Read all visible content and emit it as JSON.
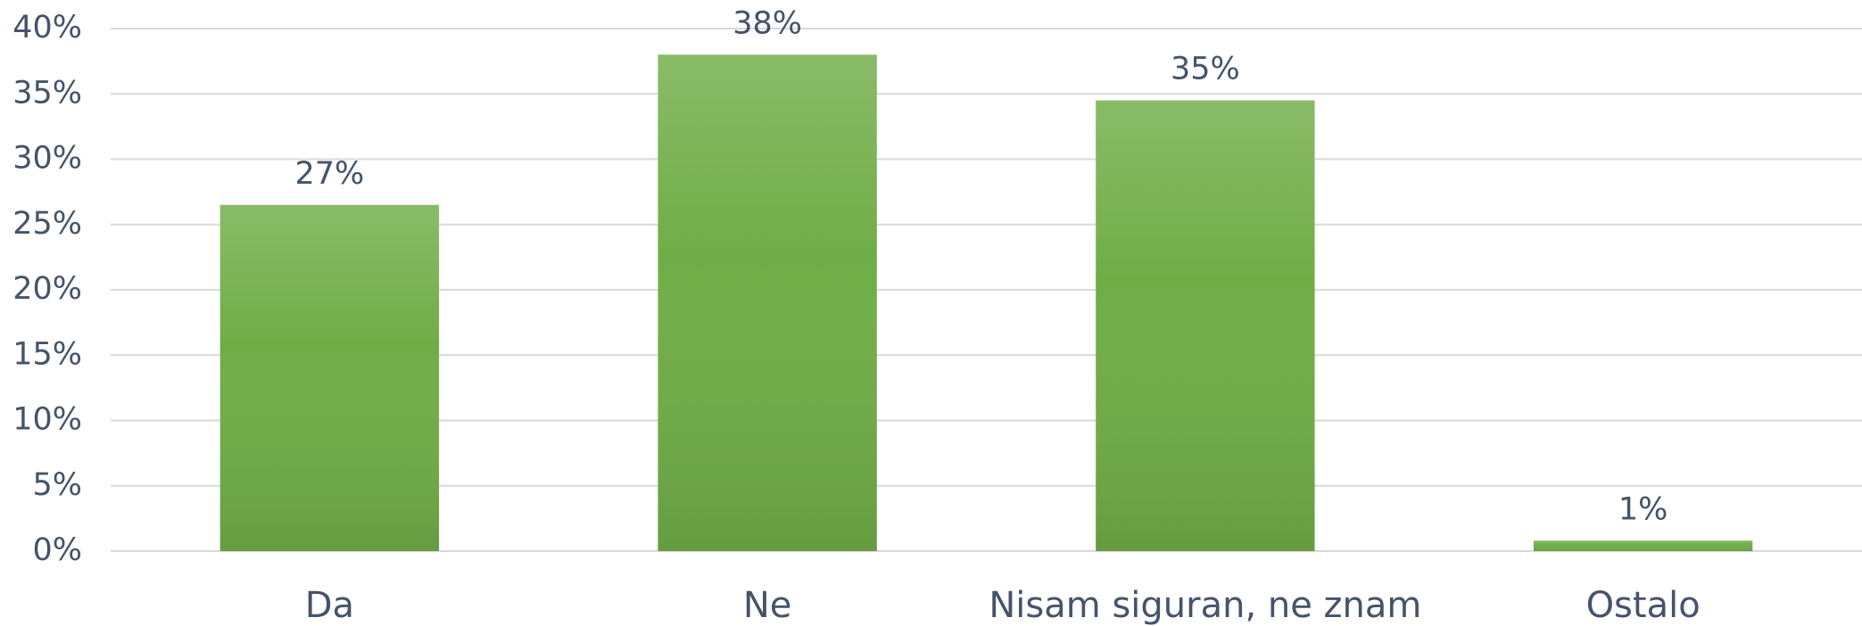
{
  "chart_data": {
    "type": "bar",
    "categories": [
      "Da",
      "Ne",
      "Nisam siguran, ne znam",
      "Ostalo"
    ],
    "values": [
      26.5,
      38,
      34.5,
      0.8
    ],
    "value_labels": [
      "27%",
      "38%",
      "35%",
      "1%"
    ],
    "color": "#70ad47",
    "ylim": [
      0,
      40
    ],
    "yticks": [
      {
        "value": 0,
        "label": "0%"
      },
      {
        "value": 5,
        "label": "5%"
      },
      {
        "value": 10,
        "label": "10%"
      },
      {
        "value": 15,
        "label": "15%"
      },
      {
        "value": 20,
        "label": "20%"
      },
      {
        "value": 25,
        "label": "25%"
      },
      {
        "value": 30,
        "label": "30%"
      },
      {
        "value": 35,
        "label": "35%"
      },
      {
        "value": 40,
        "label": "40%"
      }
    ],
    "grid": true
  }
}
